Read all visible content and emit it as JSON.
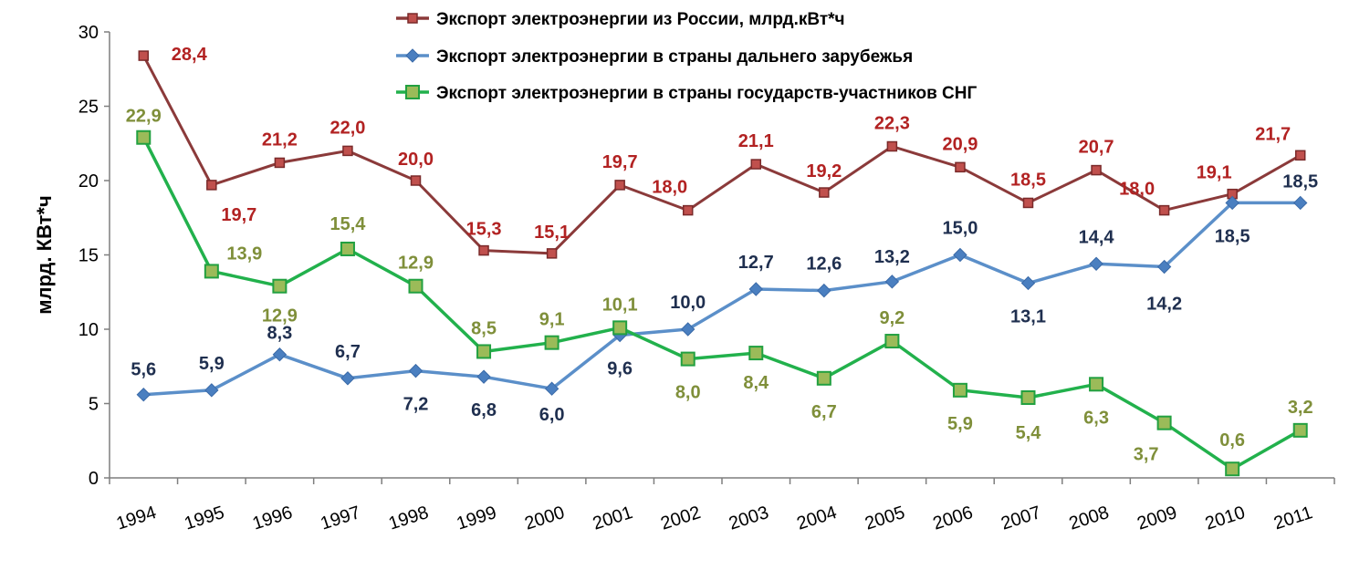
{
  "chart_data": {
    "type": "line",
    "title": "",
    "xlabel": "",
    "ylabel": "млрд. КВт*ч",
    "ylim": [
      0,
      30
    ],
    "yticks": [
      0,
      5,
      10,
      15,
      20,
      25,
      30
    ],
    "grid": false,
    "legend_position": "top-center",
    "x": [
      "1994",
      "1995",
      "1996",
      "1997",
      "1998",
      "1999",
      "2000",
      "2001",
      "2002",
      "2003",
      "2004",
      "2005",
      "2006",
      "2007",
      "2008",
      "2009",
      "2010",
      "2011"
    ],
    "series": [
      {
        "name": "Экспорт электроэнергии из России, млрд.кВт*ч",
        "color": "#8b3a3a",
        "label_color": "#b22222",
        "marker": "square",
        "values": [
          28.4,
          19.7,
          21.2,
          22.0,
          20.0,
          15.3,
          15.1,
          19.7,
          18.0,
          21.1,
          19.2,
          22.3,
          20.9,
          18.5,
          20.7,
          18.0,
          19.1,
          21.7
        ],
        "labels": [
          "28,4",
          "19,7",
          "21,2",
          "22,0",
          "20,0",
          "15,3",
          "15,1",
          "19,7",
          "18,0",
          "21,1",
          "19,2",
          "22,3",
          "20,9",
          "18,5",
          "20,7",
          "18,0",
          "19,1",
          "21,7"
        ]
      },
      {
        "name": "Экспорт электроэнергии в страны дальнего зарубежья",
        "color": "#5b8fc9",
        "label_color": "#1f2f4f",
        "marker": "diamond",
        "values": [
          5.6,
          5.9,
          8.3,
          6.7,
          7.2,
          6.8,
          6.0,
          9.6,
          10.0,
          12.7,
          12.6,
          13.2,
          15.0,
          13.1,
          14.4,
          14.2,
          18.5,
          18.5
        ],
        "labels": [
          "5,6",
          "5,9",
          "8,3",
          "6,7",
          "7,2",
          "6,8",
          "6,0",
          "9,6",
          "10,0",
          "12,7",
          "12,6",
          "13,2",
          "15,0",
          "13,1",
          "14,4",
          "14,2",
          "18,5",
          "18,5"
        ]
      },
      {
        "name": "Экспорт электроэнергии в страны государств-участников СНГ",
        "color": "#22b14c",
        "label_color": "#7f8f3a",
        "marker": "square-green",
        "values": [
          22.9,
          13.9,
          12.9,
          15.4,
          12.9,
          8.5,
          9.1,
          10.1,
          8.0,
          8.4,
          6.7,
          9.2,
          5.9,
          5.4,
          6.3,
          3.7,
          0.6,
          3.2
        ],
        "labels": [
          "22,9",
          "13,9",
          "12,9",
          "15,4",
          "12,9",
          "8,5",
          "9,1",
          "10,1",
          "8,0",
          "8,4",
          "6,7",
          "9,2",
          "5,9",
          "5,4",
          "6,3",
          "3,7",
          "0,6",
          "3,2"
        ]
      }
    ]
  }
}
